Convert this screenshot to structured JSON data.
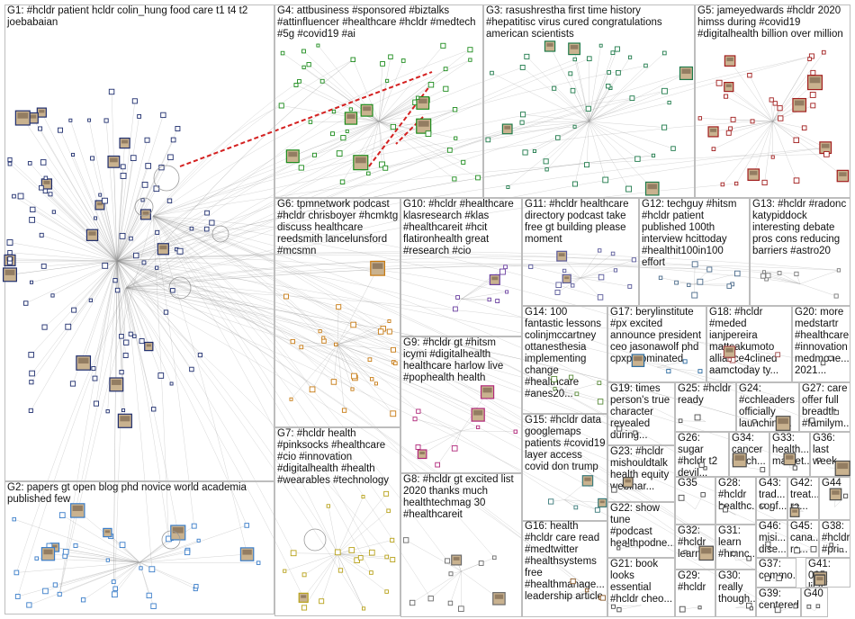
{
  "groups": [
    {
      "id": "G1",
      "label": "G1: #hcldr patient hcldr colin_hung food care t1 t4 t2\njoebabaian",
      "color": "#1f2e6e"
    },
    {
      "id": "G2",
      "label": "G2: papers gt open blog phd novice world academia\npublished few",
      "color": "#3a7dc9"
    },
    {
      "id": "G3",
      "label": "G3: rasushrestha first time history\n#hepatitisc virus cured congratulations\namerican scientists",
      "color": "#1e7a4a"
    },
    {
      "id": "G4",
      "label": "G4: attbusiness #sponsored #biztalks\n#attinfluencer #healthcare #hcldr #medtech\n#5g #covid19 #ai",
      "color": "#1d8c1d"
    },
    {
      "id": "G5",
      "label": "G5: jameyedwards #hcldr 2020\nhimss during #covid19\n#digitalhealth billion over million",
      "color": "#a11d1d"
    },
    {
      "id": "G6",
      "label": "G6: tpmnetwork podcast\n#hcldr chrisboyer #hcmktg\ndiscuss healthcare\nreedsmith lancelunsford\n#mcsmn",
      "color": "#c77a12"
    },
    {
      "id": "G7",
      "label": "G7: #hcldr health\n#pinksocks #healthcare\n#cio #innovation\n#digitalhealth #health\n#wearables #technology",
      "color": "#b8a21a"
    },
    {
      "id": "G8",
      "label": "G8: #hcldr gt excited list\n2020 thanks much\nhealthtechmag 30\n#healthcareit",
      "color": "#6a6a6a"
    },
    {
      "id": "G9",
      "label": "G9: #hcldr gt #hitsm\nicymi #digitalhealth\nhealthcare harlow live\n#pophealth health",
      "color": "#b0287a"
    },
    {
      "id": "G10",
      "label": "G10: #hcldr #healthcare\nklasresearch #klas\n#healthcareit #hcit\nflatironhealth great\n#research #cio",
      "color": "#6a3fa0"
    },
    {
      "id": "G11",
      "label": "G11: #hcldr healthcare\ndirectory podcast take\nfree gt building please\nmoment",
      "color": "#5a5a9a"
    },
    {
      "id": "G12",
      "label": "G12: techguy #hitsm\n#hcldr patient\npublished 100th\ninterview hcittoday\n#healthit100in100\neffort",
      "color": "#4a6a8a"
    },
    {
      "id": "G13",
      "label": "G13: #hcldr #radonc\nkatypiddock\ninteresting debate\npros cons reducing\nbarriers #astro20",
      "color": "#7a7a7a"
    },
    {
      "id": "G14",
      "label": "G14: 100\nfantastic lessons\ncolinjmccartney\nottanesthesia\nimplementing\nchange\n#healthcare\n#anes20...",
      "color": "#5a8a3a"
    },
    {
      "id": "G15",
      "label": "G15: #hcldr data\ngooglemaps\npatients #covid19\nlayer access\ncovid don trump",
      "color": "#3a7a7a"
    },
    {
      "id": "G16",
      "label": "G16: health\n#hcldr care read\n#medtwitter\n#healthsystems\nfree\n#healthmanage...\nleadership article",
      "color": "#8a5a2a"
    },
    {
      "id": "G17",
      "label": "G17: berylinstitute\n#px excited\nannounce president\nceo jasonawolf phd\ncpxp nominated",
      "color": "#2a6aa0"
    },
    {
      "id": "G18",
      "label": "G18: #hcldr\n#meded\nianjpereira\nmattsakumoto\nalliance4clined\naamctoday ty...",
      "color": "#a04a4a"
    },
    {
      "id": "G19",
      "label": "G19: times\nperson's true\ncharacter\nrevealed\nduring...",
      "color": "#4a4a4a"
    },
    {
      "id": "G20",
      "label": "G20: more\nmedstartr\n#healthcare\n#innovation\nmedmone...\n2021...",
      "color": "#4a4a4a"
    },
    {
      "id": "G21",
      "label": "G21: book\nlooks\nessential\n#hcldr cheo...",
      "color": "#4a4a4a"
    },
    {
      "id": "G22",
      "label": "G22: show\ntune\n#podcast\nhealthpodne...",
      "color": "#4a4a4a"
    },
    {
      "id": "G23",
      "label": "G23: #hcldr\nmishouldtalk\nhealth equity\nwebinar...",
      "color": "#4a4a4a"
    },
    {
      "id": "G24",
      "label": "G24:\n#cchleaders\nofficially\nlaunching...",
      "color": "#4a4a4a"
    },
    {
      "id": "G25",
      "label": "G25: #hcldr\nready",
      "color": "#4a4a4a"
    },
    {
      "id": "G26",
      "label": "G26: sugar\n#hcldr t2\ndevil...",
      "color": "#4a4a4a"
    },
    {
      "id": "G27",
      "label": "G27: care\noffer full\nbreadth\n#familym...",
      "color": "#4a4a4a"
    },
    {
      "id": "G28",
      "label": "G28:\n#hcldr\nhealthc...",
      "color": "#4a4a4a"
    },
    {
      "id": "G29",
      "label": "G29:\n#hcldr",
      "color": "#4a4a4a"
    },
    {
      "id": "G30",
      "label": "G30:\nreally\nthough...",
      "color": "#4a4a4a"
    },
    {
      "id": "G31",
      "label": "G31:\nlearn\n#hmnc...",
      "color": "#4a4a4a"
    },
    {
      "id": "G32",
      "label": "G32:\n#hcldr\nlearn...",
      "color": "#4a4a4a"
    },
    {
      "id": "G33",
      "label": "G33:\nhealth...\nmarket...",
      "color": "#4a4a4a"
    },
    {
      "id": "G34",
      "label": "G34:\ncancer\nmuch...",
      "color": "#4a4a4a"
    },
    {
      "id": "G35",
      "label": "G35",
      "color": "#4a4a4a"
    },
    {
      "id": "G36",
      "label": "G36:\nlast\nweek...",
      "color": "#4a4a4a"
    },
    {
      "id": "G37",
      "label": "G37:\ncommo...",
      "color": "#4a4a4a"
    },
    {
      "id": "G38",
      "label": "G38:\n#hcldr\n#pri...",
      "color": "#4a4a4a"
    },
    {
      "id": "G39",
      "label": "G39:\ncentered",
      "color": "#4a4a4a"
    },
    {
      "id": "G40",
      "label": "G40",
      "color": "#4a4a4a"
    },
    {
      "id": "G41",
      "label": "G41: 005\nlists...",
      "color": "#4a4a4a"
    },
    {
      "id": "G42",
      "label": "G42:\ntreat...\nre...",
      "color": "#4a4a4a"
    },
    {
      "id": "G43",
      "label": "G43:\ntrad...\nconf...",
      "color": "#4a4a4a"
    },
    {
      "id": "G44",
      "label": "G44",
      "color": "#4a4a4a"
    },
    {
      "id": "G45",
      "label": "G45:\ncana...\nre...",
      "color": "#4a4a4a"
    },
    {
      "id": "G46",
      "label": "G46:\nmisi...\ndise...",
      "color": "#4a4a4a"
    }
  ]
}
